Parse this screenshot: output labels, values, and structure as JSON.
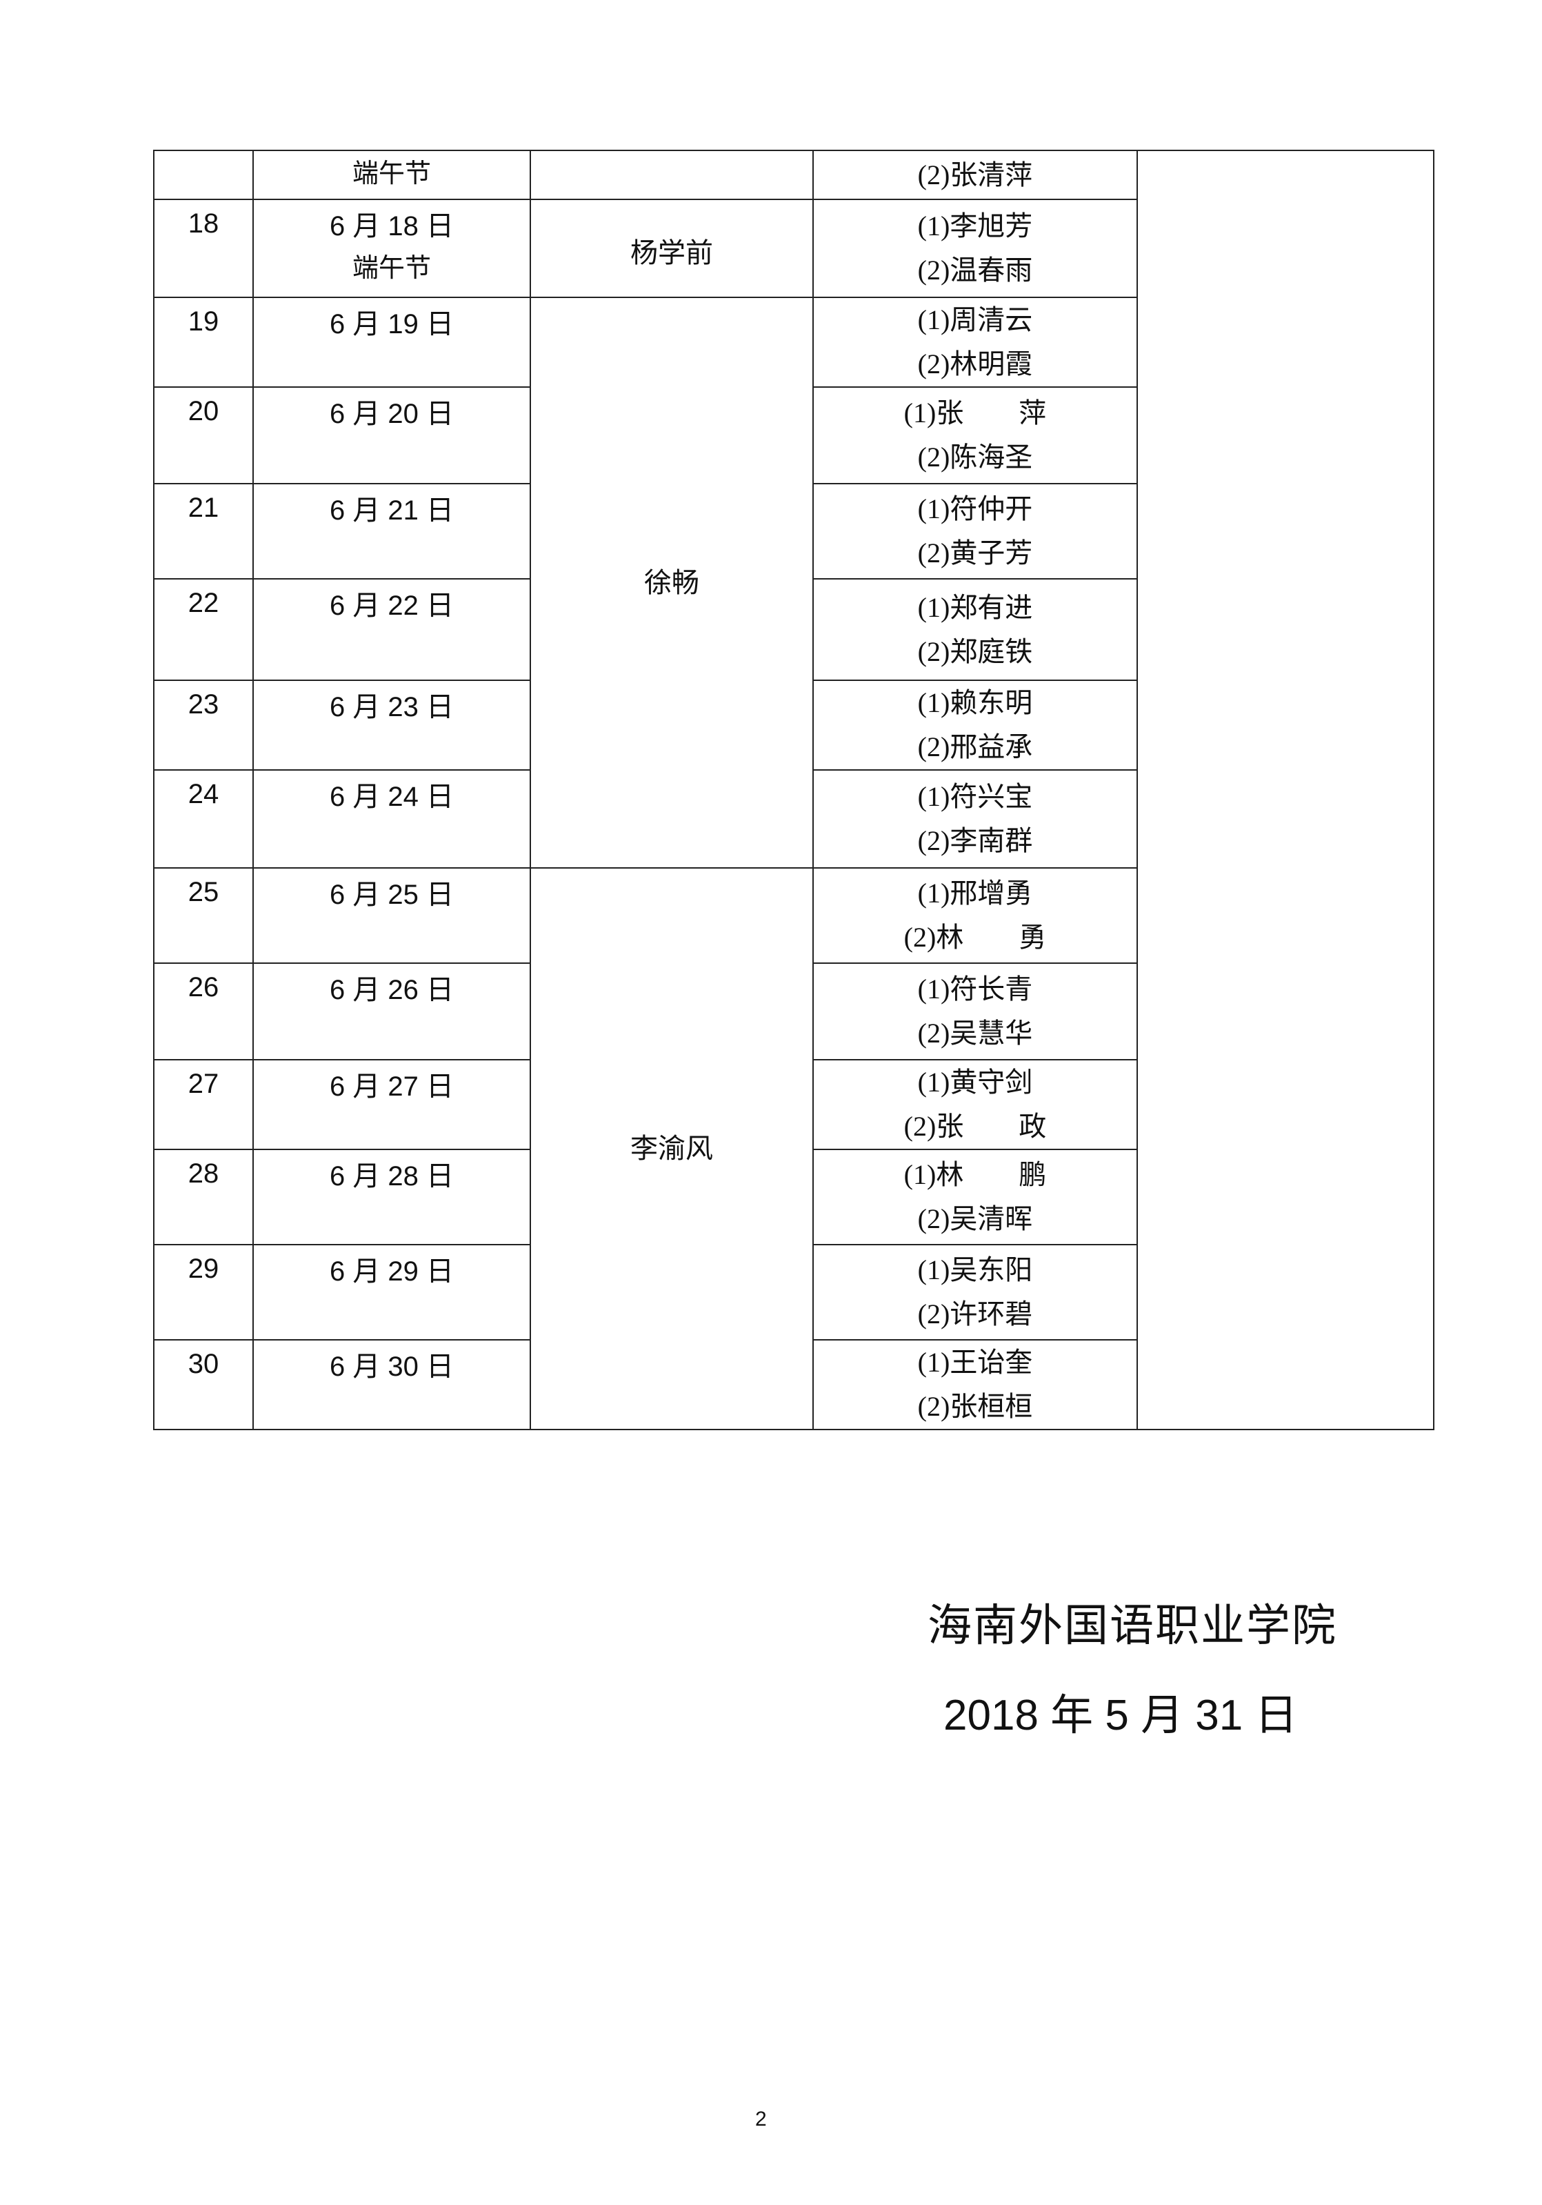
{
  "table": {
    "top_row": {
      "holiday": "端午节",
      "staff2": "(2)张清萍"
    },
    "rows": [
      {
        "num": "18",
        "date": "6 月 18 日",
        "holiday": "端午节",
        "staff": [
          "(1)李旭芳",
          "(2)温春雨"
        ]
      },
      {
        "num": "19",
        "date": "6 月 19 日",
        "staff": [
          "(1)周清云",
          "(2)林明霞"
        ]
      },
      {
        "num": "20",
        "date": "6 月 20 日",
        "staff": [
          "(1)张　　萍",
          "(2)陈海圣"
        ]
      },
      {
        "num": "21",
        "date": "6 月 21 日",
        "staff": [
          "(1)符仲开",
          "(2)黄子芳"
        ]
      },
      {
        "num": "22",
        "date": "6 月 22 日",
        "staff": [
          "(1)郑有进",
          "(2)郑庭铁"
        ]
      },
      {
        "num": "23",
        "date": "6 月 23 日",
        "staff": [
          "(1)赖东明",
          "(2)邢益承"
        ]
      },
      {
        "num": "24",
        "date": "6 月 24 日",
        "staff": [
          "(1)符兴宝",
          "(2)李南群"
        ]
      },
      {
        "num": "25",
        "date": "6 月 25 日",
        "staff": [
          "(1)邢增勇",
          "(2)林　　勇"
        ]
      },
      {
        "num": "26",
        "date": "6 月 26 日",
        "staff": [
          "(1)符长青",
          "(2)吴慧华"
        ]
      },
      {
        "num": "27",
        "date": "6 月 27 日",
        "staff": [
          "(1)黄守剑",
          "(2)张　　政"
        ]
      },
      {
        "num": "28",
        "date": "6 月 28 日",
        "staff": [
          "(1)林　　鹏",
          "(2)吴清晖"
        ]
      },
      {
        "num": "29",
        "date": "6 月 29 日",
        "staff": [
          "(1)吴东阳",
          "(2)许环碧"
        ]
      },
      {
        "num": "30",
        "date": "6 月 30 日",
        "staff": [
          "(1)王诒奎",
          "(2)张桓桓"
        ]
      }
    ],
    "leaders": {
      "day18": "杨学前",
      "days19_24": "徐畅",
      "days25_30": "李渝风"
    }
  },
  "footer": {
    "organization": "海南外国语职业学院",
    "date": "2018 年 5 月 31 日"
  },
  "page_number": "2"
}
